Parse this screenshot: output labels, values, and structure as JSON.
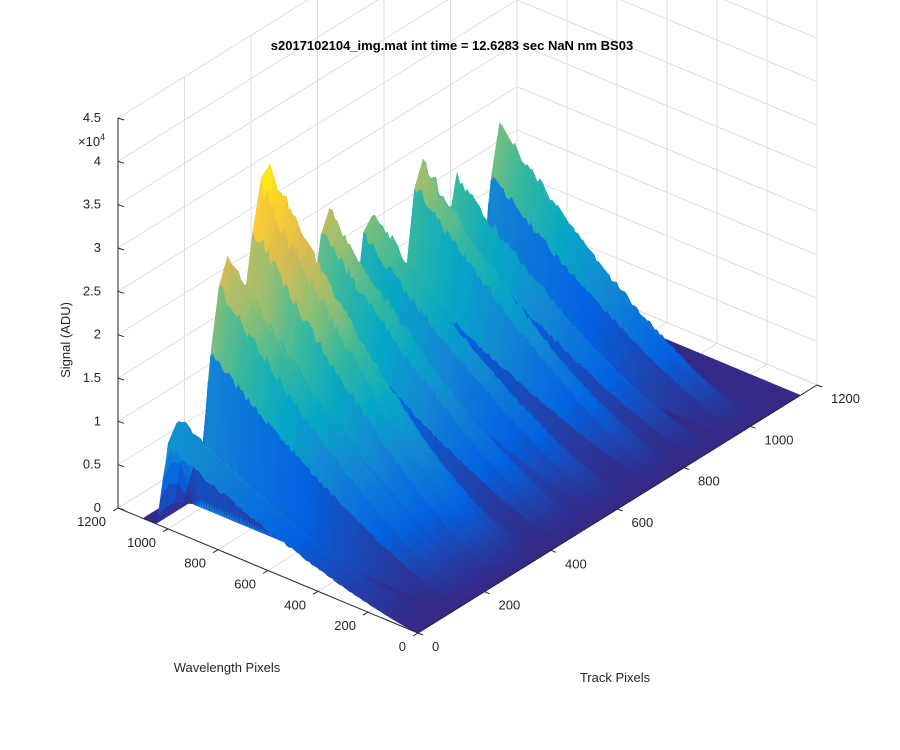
{
  "figure": {
    "title": "s2017102104_img.mat int time = 12.6283 sec  NaN nm BS03",
    "exponent_label": "×10",
    "exponent_power": "4"
  },
  "colors": {
    "background": "#ffffff",
    "grid": "#dedede",
    "axis": "#262626",
    "colormap": [
      "#352a87",
      "#0363e1",
      "#1485d4",
      "#06a7c6",
      "#38b99e",
      "#92bf73",
      "#d9ba56",
      "#fcce2e",
      "#f9fb0e"
    ]
  },
  "chart_data": {
    "type": "surface",
    "title": "s2017102104_img.mat int time = 12.6283 sec  NaN nm BS03",
    "xlabel": "Track Pixels",
    "ylabel": "Wavelength Pixels",
    "zlabel": "Signal (ADU)",
    "xlim": [
      0,
      1200
    ],
    "ylim": [
      0,
      1200
    ],
    "zlim": [
      0,
      45000
    ],
    "x_ticks": [
      "0",
      "200",
      "400",
      "600",
      "800",
      "1000",
      "1200"
    ],
    "y_ticks": [
      "0",
      "200",
      "400",
      "600",
      "800",
      "1000",
      "1200"
    ],
    "z_ticks": [
      "0",
      "0.5",
      "1",
      "1.5",
      "2",
      "2.5",
      "3",
      "3.5",
      "4",
      "4.5"
    ],
    "z_multiplier": 10000,
    "grid": true,
    "colormap": "parula",
    "x_range_shown": [
      0,
      1150
    ],
    "y_range_shown": [
      0,
      1100
    ],
    "series": [
      {
        "track_center": 30,
        "track_width": 55,
        "peak_signal": 12500
      },
      {
        "track_center": 180,
        "track_width": 75,
        "peak_signal": 27500
      },
      {
        "track_center": 300,
        "track_width": 95,
        "peak_signal": 35000
      },
      {
        "track_center": 480,
        "track_width": 65,
        "peak_signal": 26000
      },
      {
        "track_center": 610,
        "track_width": 60,
        "peak_signal": 23000
      },
      {
        "track_center": 760,
        "track_width": 55,
        "peak_signal": 25000
      },
      {
        "track_center": 870,
        "track_width": 45,
        "peak_signal": 20500
      },
      {
        "track_center": 1000,
        "track_width": 50,
        "peak_signal": 24000
      }
    ]
  }
}
